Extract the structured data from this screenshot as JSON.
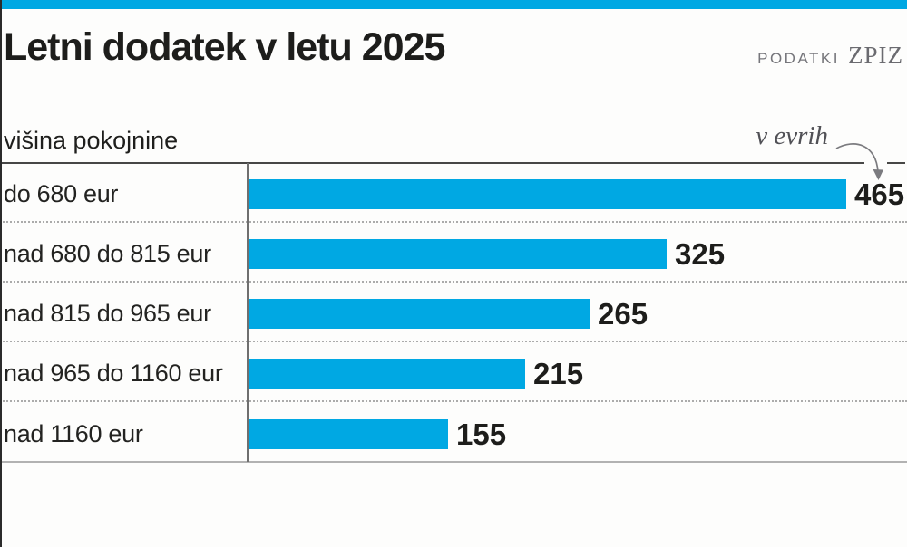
{
  "header": {
    "title": "Letni dodatek v letu 2025",
    "source_label": "PODATKI",
    "source_name": "ZPIZ"
  },
  "axis": {
    "label": "višina pokojnine",
    "unit_note": "v evrih"
  },
  "colors": {
    "bar": "#00a8e3",
    "accent_strip": "#00a8e3",
    "text_dark": "#1d1d1b",
    "text_gray": "#76767b"
  },
  "chart_data": {
    "type": "bar",
    "orientation": "horizontal",
    "title": "Letni dodatek v letu 2025",
    "source": "PODATKI ZPIZ",
    "xlabel": "višina pokojnine",
    "unit": "v evrih",
    "categories": [
      "do 680 eur",
      "nad 680 do 815 eur",
      "nad 815 do 965 eur",
      "nad 965 do 1160 eur",
      "nad 1160 eur"
    ],
    "values": [
      465,
      325,
      265,
      215,
      155
    ],
    "xlim": [
      0,
      465
    ],
    "grid": "dotted-row-separators",
    "legend": "none"
  }
}
